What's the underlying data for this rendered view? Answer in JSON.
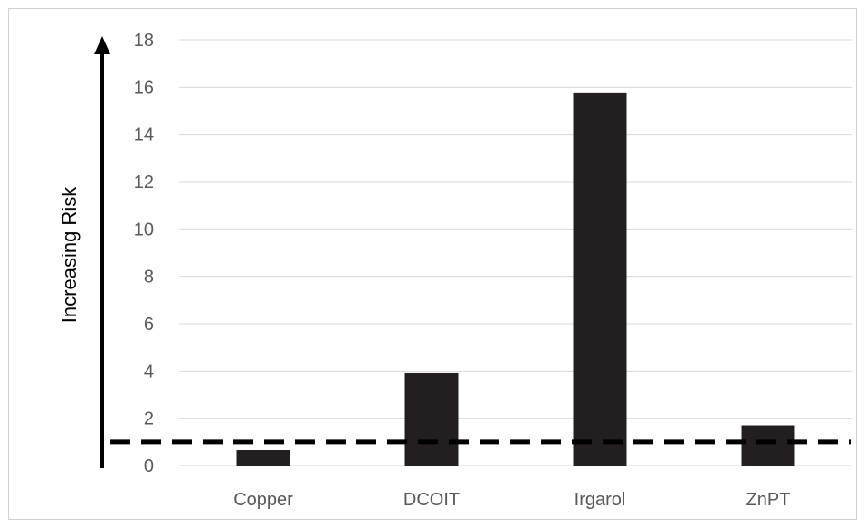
{
  "chart_data": {
    "type": "bar",
    "categories": [
      "Copper",
      "DCOIT",
      "Irgarol",
      "ZnPT"
    ],
    "values": [
      0.65,
      3.9,
      15.75,
      1.7
    ],
    "ylabel": "Increasing Risk",
    "ylim": [
      0,
      18
    ],
    "yticks": [
      0,
      2,
      4,
      6,
      8,
      10,
      12,
      14,
      16,
      18
    ],
    "reference_line": {
      "value": 1,
      "style": "dashed"
    },
    "grid": true,
    "legend": "none",
    "colors": {
      "bar": "#231f20",
      "grid": "#d9d9d9",
      "reference": "#000000",
      "text": "#595959"
    }
  }
}
